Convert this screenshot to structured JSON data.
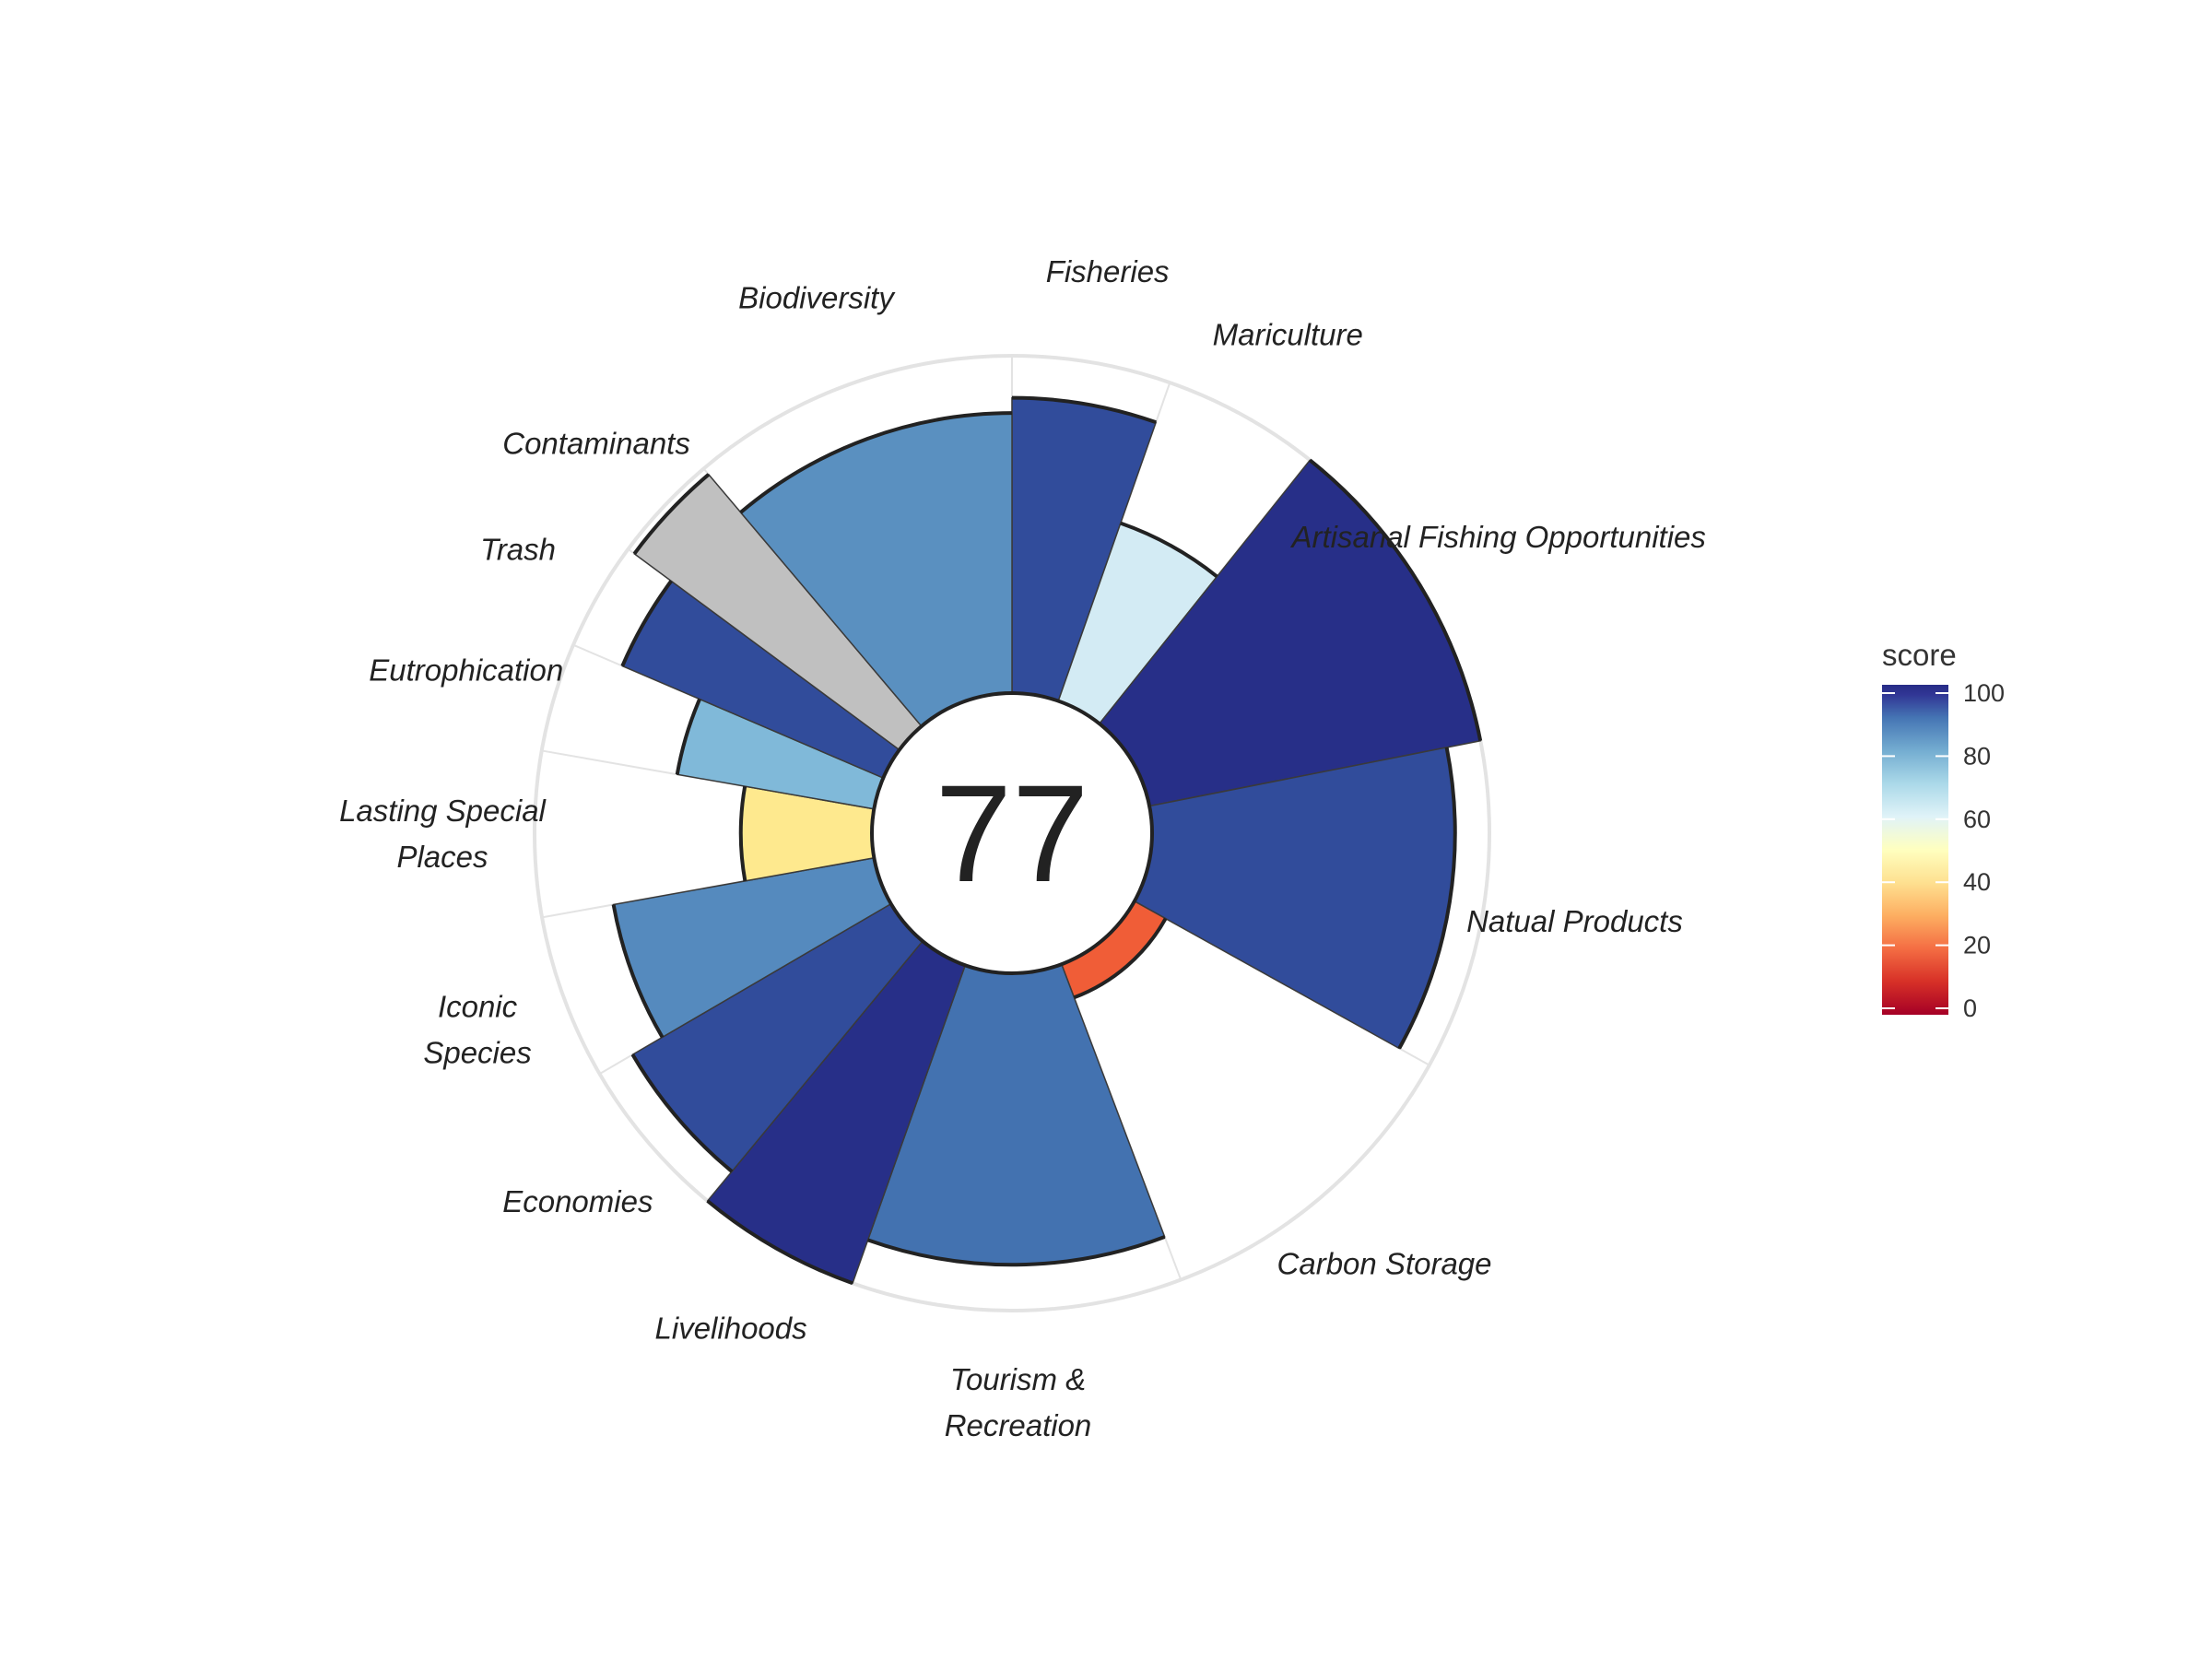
{
  "chart_data": {
    "type": "bar",
    "subtype": "polar-flower",
    "center_score": "77",
    "categories": [
      {
        "label": [
          "Fisheries"
        ],
        "score": 89,
        "weight": 0.48,
        "color": "#314c9b"
      },
      {
        "label": [
          "Mariculture"
        ],
        "score": 61,
        "weight": 0.48,
        "color": "#d3ebf4"
      },
      {
        "label": [
          "Artisanal Fishing Opportunities"
        ],
        "score": 100,
        "weight": 1,
        "color": "#272f88"
      },
      {
        "label": [
          "Natual Products"
        ],
        "score": 91,
        "weight": 1,
        "color": "#314c9b"
      },
      {
        "label": [
          "Carbon Storage"
        ],
        "score": 21,
        "weight": 1,
        "color": "#f05d37"
      },
      {
        "label": [
          "Tourism &",
          "Recreation"
        ],
        "score": 88,
        "weight": 1,
        "color": "#4372b0"
      },
      {
        "label": [
          "Livelihoods"
        ],
        "score": 100,
        "weight": 0.5,
        "color": "#272f88"
      },
      {
        "label": [
          "Economies"
        ],
        "score": 90,
        "weight": 0.5,
        "color": "#314c9b"
      },
      {
        "label": [
          "Iconic",
          "Species"
        ],
        "score": 81,
        "weight": 0.5,
        "color": "#558abe"
      },
      {
        "label": [
          "Lasting Special",
          "Places"
        ],
        "score": 46,
        "weight": 0.5,
        "color": "#fee98e"
      },
      {
        "label": [
          "Eutrophication"
        ],
        "score": 64,
        "weight": 0.33,
        "color": "#80b9d9"
      },
      {
        "label": [
          "Trash"
        ],
        "score": 86,
        "weight": 0.33,
        "color": "#314c9b"
      },
      {
        "label": [
          "Contaminants"
        ],
        "score": 98,
        "weight": 0.33,
        "color": "#c0c0c0"
      },
      {
        "label": [
          "Biodiversity"
        ],
        "score": 85,
        "weight": 1,
        "color": "#5a90c0"
      }
    ],
    "ylim": [
      -25,
      100
    ],
    "legend": {
      "title": "score",
      "ticks": [
        "100",
        "80",
        "60",
        "40",
        "20",
        "0"
      ],
      "placement": "right",
      "colors": [
        "#a50026",
        "#d73027",
        "#f46d43",
        "#fdae61",
        "#fee090",
        "#ffffbf",
        "#e0f3f8",
        "#abd9e9",
        "#74add1",
        "#4575b4",
        "#313695",
        "#262c86"
      ]
    }
  }
}
